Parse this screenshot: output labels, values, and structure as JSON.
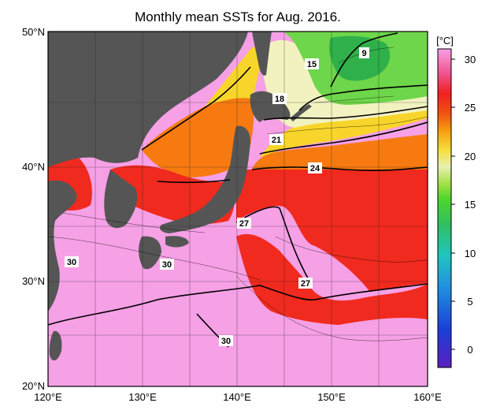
{
  "title": "Monthly mean SSTs for Aug. 2016.",
  "axes": {
    "x_ticks": [
      "120°E",
      "130°E",
      "140°E",
      "150°E",
      "160°E"
    ],
    "y_ticks": [
      "50°N",
      "40°N",
      "30°N",
      "20°N"
    ]
  },
  "colorbar": {
    "unit": "[°C]",
    "ticks": [
      "30",
      "25",
      "20",
      "15",
      "10",
      "5",
      "0"
    ],
    "colors": [
      "#5a1fbf",
      "#1a3fd8",
      "#1f8fe0",
      "#20c4c0",
      "#2fc060",
      "#4fd62a",
      "#a8e24a",
      "#e8f0b0",
      "#f6e040",
      "#f8a010",
      "#f05010",
      "#f02020",
      "#f0508a",
      "#f8a0e8"
    ]
  },
  "isotherm_labels": [
    "9",
    "15",
    "18",
    "21",
    "24",
    "27",
    "27",
    "30",
    "30",
    "30"
  ],
  "colors": {
    "land": "#555555",
    "warm_pink": "#f6a0e6",
    "red": "#f02a1e",
    "orange": "#f77a10",
    "yellow": "#f8d52a",
    "pale": "#f2f2c0",
    "green": "#6ed64a"
  }
}
